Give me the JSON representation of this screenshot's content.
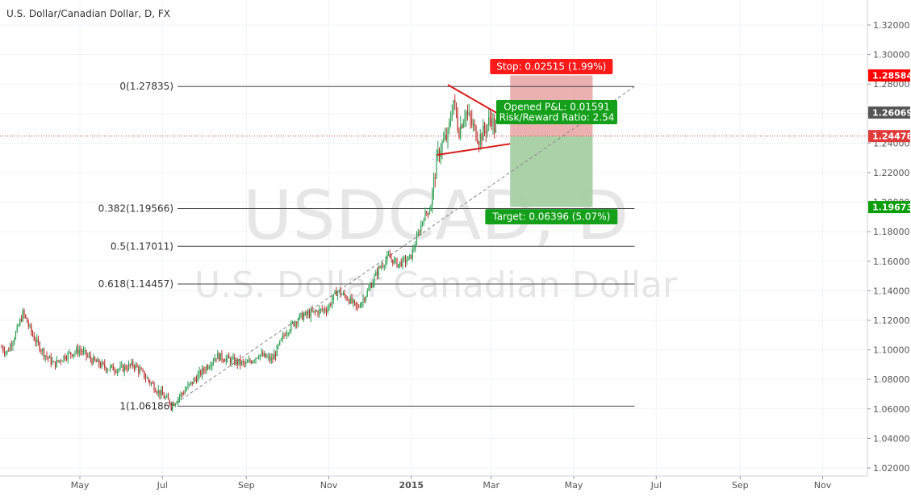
{
  "chart_data": {
    "type": "candlestick",
    "title": "U.S. Dollar/Canadian Dollar, D, FX",
    "watermark": {
      "symbol": "USDCAD, D",
      "name": "U.S. Dollar Canadian Dollar"
    },
    "x_axis": {
      "ticks": [
        {
          "date": "2014-05-01",
          "label": "May"
        },
        {
          "date": "2014-07-01",
          "label": "Jul"
        },
        {
          "date": "2014-09-01",
          "label": "Sep"
        },
        {
          "date": "2014-11-01",
          "label": "Nov"
        },
        {
          "date": "2015-01-01",
          "label": "2015"
        },
        {
          "date": "2015-03-01",
          "label": "Mar"
        },
        {
          "date": "2015-05-01",
          "label": "May"
        },
        {
          "date": "2015-07-01",
          "label": "Jul"
        },
        {
          "date": "2015-09-01",
          "label": "Sep"
        },
        {
          "date": "2015-11-01",
          "label": "Nov"
        }
      ]
    },
    "y_axis": {
      "range": [
        1.01,
        1.33
      ],
      "ticks": [
        "1.02000",
        "1.04000",
        "1.06000",
        "1.08000",
        "1.10000",
        "1.12000",
        "1.14000",
        "1.16000",
        "1.18000",
        "1.20000",
        "1.22000",
        "1.24000",
        "1.26000",
        "1.28000",
        "1.30000",
        "1.32000"
      ]
    },
    "price_path": [
      [
        "2014-03-01",
        1.105
      ],
      [
        "2014-03-08",
        1.098
      ],
      [
        "2014-03-15",
        1.112
      ],
      [
        "2014-03-20",
        1.125
      ],
      [
        "2014-03-28",
        1.108
      ],
      [
        "2014-04-05",
        1.097
      ],
      [
        "2014-04-12",
        1.09
      ],
      [
        "2014-04-20",
        1.096
      ],
      [
        "2014-05-01",
        1.1
      ],
      [
        "2014-05-10",
        1.093
      ],
      [
        "2014-05-20",
        1.088
      ],
      [
        "2014-05-31",
        1.087
      ],
      [
        "2014-06-10",
        1.09
      ],
      [
        "2014-06-20",
        1.08
      ],
      [
        "2014-06-30",
        1.07
      ],
      [
        "2014-07-08",
        1.063
      ],
      [
        "2014-07-20",
        1.075
      ],
      [
        "2014-08-01",
        1.087
      ],
      [
        "2014-08-10",
        1.096
      ],
      [
        "2014-08-20",
        1.093
      ],
      [
        "2014-09-01",
        1.09
      ],
      [
        "2014-09-10",
        1.097
      ],
      [
        "2014-09-20",
        1.093
      ],
      [
        "2014-09-30",
        1.112
      ],
      [
        "2014-10-10",
        1.122
      ],
      [
        "2014-10-20",
        1.125
      ],
      [
        "2014-10-31",
        1.128
      ],
      [
        "2014-11-07",
        1.14
      ],
      [
        "2014-11-15",
        1.135
      ],
      [
        "2014-11-22",
        1.128
      ],
      [
        "2014-11-30",
        1.14
      ],
      [
        "2014-12-08",
        1.155
      ],
      [
        "2014-12-15",
        1.163
      ],
      [
        "2014-12-22",
        1.158
      ],
      [
        "2014-12-31",
        1.162
      ],
      [
        "2015-01-05",
        1.175
      ],
      [
        "2015-01-10",
        1.19
      ],
      [
        "2015-01-15",
        1.196
      ],
      [
        "2015-01-20",
        1.23
      ],
      [
        "2015-01-24",
        1.24
      ],
      [
        "2015-01-28",
        1.245
      ],
      [
        "2015-02-01",
        1.27
      ],
      [
        "2015-02-05",
        1.248
      ],
      [
        "2015-02-10",
        1.262
      ],
      [
        "2015-02-15",
        1.252
      ],
      [
        "2015-02-20",
        1.243
      ],
      [
        "2015-02-25",
        1.25
      ],
      [
        "2015-03-01",
        1.258
      ],
      [
        "2015-03-05",
        1.2448
      ]
    ],
    "fibonacci": {
      "levels": [
        {
          "label": "0(1.27835)",
          "value": 1.27835
        },
        {
          "label": "0.382(1.19566)",
          "value": 1.19566
        },
        {
          "label": "0.5(1.17011)",
          "value": 1.17011
        },
        {
          "label": "0.618(1.14457)",
          "value": 1.14457
        },
        {
          "label": "1(1.06186)",
          "value": 1.06186
        }
      ],
      "start_date": "2014-07-08",
      "end_date": "2015-06-15"
    },
    "trend_line": {
      "from": [
        "2014-07-08",
        1.0619
      ],
      "to": [
        "2015-06-15",
        1.2784
      ]
    },
    "triangle": {
      "upper": [
        [
          "2015-01-28",
          1.2795
        ],
        [
          "2015-03-05",
          1.2605
        ]
      ],
      "lower": [
        [
          "2015-01-20",
          1.232
        ],
        [
          "2015-03-15",
          1.2395
        ]
      ]
    },
    "position": {
      "entry": 1.24478,
      "stop": 1.28584,
      "target": 1.19673,
      "current": 1.26069,
      "start_date": "2015-03-15",
      "end_date": "2015-05-15",
      "stop_label": "Stop: 0.02515 (1.99%)",
      "target_label": "Target: 0.06396 (5.07%)",
      "pnl_label": "Opened P&L: 0.01591",
      "rr_label": "Risk/Reward Ratio: 2.54"
    },
    "price_tags": [
      {
        "value": 1.28584,
        "label": "1.28584",
        "color": "#ff0000"
      },
      {
        "value": 1.26069,
        "label": "1.26069",
        "color": "#555555"
      },
      {
        "value": 1.24478,
        "label": "1.24478",
        "color": "#e03a3a"
      },
      {
        "value": 1.19673,
        "label": "1.19673",
        "color": "#0a9e0a"
      }
    ],
    "colors": {
      "up": "#2b9e52",
      "down": "#b8302e",
      "stop": "#ff0000",
      "target": "#14a01a"
    }
  }
}
